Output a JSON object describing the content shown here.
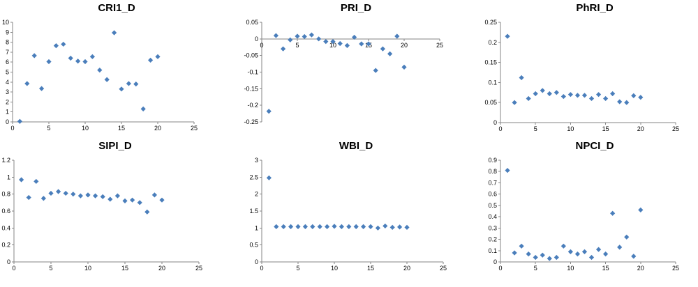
{
  "chart_data": [
    {
      "type": "scatter",
      "title": "CRI1_D",
      "xlim": [
        0,
        25
      ],
      "xticks": [
        0,
        5,
        10,
        15,
        20,
        25
      ],
      "ylim": [
        0,
        10
      ],
      "yticks": [
        0,
        1,
        2,
        3,
        4,
        5,
        6,
        7,
        8,
        9,
        10
      ],
      "series": [
        {
          "name": "CRI1_D",
          "color": "#4a7ebb",
          "x": [
            1,
            2,
            3,
            4,
            5,
            6,
            7,
            8,
            9,
            10,
            11,
            12,
            13,
            14,
            15,
            16,
            17,
            18,
            19,
            20
          ],
          "y": [
            0.05,
            3.85,
            6.65,
            3.35,
            6.05,
            7.65,
            7.8,
            6.4,
            6.1,
            6.05,
            6.55,
            5.2,
            4.25,
            8.95,
            3.3,
            3.85,
            3.8,
            1.3,
            6.2,
            6.55
          ]
        }
      ]
    },
    {
      "type": "scatter",
      "title": "PRI_D",
      "xlim": [
        0,
        25
      ],
      "xticks": [
        0,
        5,
        10,
        15,
        20,
        25
      ],
      "ylim": [
        -0.25,
        0.05
      ],
      "yticks": [
        -0.25,
        -0.2,
        -0.15,
        -0.1,
        -0.05,
        0,
        0.05
      ],
      "ytick_labels": [
        "-0.25",
        "-0.2",
        "-0.15",
        "-0.1",
        "-0.05",
        "0",
        "0.05"
      ],
      "x_axis_at": 0,
      "series": [
        {
          "name": "PRI_D",
          "color": "#4a7ebb",
          "x": [
            1,
            2,
            3,
            4,
            5,
            6,
            7,
            8,
            9,
            10,
            11,
            12,
            13,
            14,
            15,
            16,
            17,
            18,
            19,
            20
          ],
          "y": [
            -0.218,
            0.01,
            -0.03,
            -0.003,
            0.008,
            0.007,
            0.012,
            0.0,
            -0.008,
            -0.008,
            -0.014,
            -0.02,
            0.005,
            -0.015,
            -0.015,
            -0.095,
            -0.03,
            -0.045,
            0.008,
            -0.085
          ]
        }
      ]
    },
    {
      "type": "scatter",
      "title": "PhRI_D",
      "xlim": [
        0,
        25
      ],
      "xticks": [
        0,
        5,
        10,
        15,
        20,
        25
      ],
      "ylim": [
        0,
        0.25
      ],
      "yticks": [
        0,
        0.05,
        0.1,
        0.15,
        0.2,
        0.25
      ],
      "ytick_labels": [
        "0",
        "0.05",
        "0.1",
        "0.15",
        "0.2",
        "0.25"
      ],
      "series": [
        {
          "name": "PhRI_D",
          "color": "#4a7ebb",
          "x": [
            1,
            2,
            3,
            4,
            5,
            6,
            7,
            8,
            9,
            10,
            11,
            12,
            13,
            14,
            15,
            16,
            17,
            18,
            19,
            20
          ],
          "y": [
            0.215,
            0.05,
            0.112,
            0.06,
            0.072,
            0.08,
            0.072,
            0.075,
            0.065,
            0.07,
            0.068,
            0.068,
            0.06,
            0.07,
            0.06,
            0.072,
            0.052,
            0.05,
            0.067,
            0.063
          ]
        }
      ]
    },
    {
      "type": "scatter",
      "title": "SIPI_D",
      "xlim": [
        0,
        25
      ],
      "xticks": [
        0,
        5,
        10,
        15,
        20,
        25
      ],
      "ylim": [
        0,
        1.2
      ],
      "yticks": [
        0,
        0.2,
        0.4,
        0.6,
        0.8,
        1,
        1.2
      ],
      "ytick_labels": [
        "0",
        "0.2",
        "0.4",
        "0.6",
        "0.8",
        "1",
        "1.2"
      ],
      "series": [
        {
          "name": "SIPI_D",
          "color": "#4a7ebb",
          "x": [
            1,
            2,
            3,
            4,
            5,
            6,
            7,
            8,
            9,
            10,
            11,
            12,
            13,
            14,
            15,
            16,
            17,
            18,
            19,
            20
          ],
          "y": [
            0.97,
            0.76,
            0.95,
            0.75,
            0.81,
            0.83,
            0.81,
            0.8,
            0.78,
            0.79,
            0.78,
            0.77,
            0.74,
            0.78,
            0.72,
            0.73,
            0.7,
            0.59,
            0.79,
            0.73
          ]
        }
      ]
    },
    {
      "type": "scatter",
      "title": "WBI_D",
      "xlim": [
        0,
        25
      ],
      "xticks": [
        0,
        5,
        10,
        15,
        20,
        25
      ],
      "ylim": [
        0,
        3
      ],
      "yticks": [
        0,
        0.5,
        1,
        1.5,
        2,
        2.5,
        3
      ],
      "ytick_labels": [
        "0",
        "0.5",
        "1",
        "1.5",
        "2",
        "2.5",
        "3"
      ],
      "series": [
        {
          "name": "WBI_D",
          "color": "#4a7ebb",
          "x": [
            1,
            2,
            3,
            4,
            5,
            6,
            7,
            8,
            9,
            10,
            11,
            12,
            13,
            14,
            15,
            16,
            17,
            18,
            19,
            20
          ],
          "y": [
            2.48,
            1.04,
            1.04,
            1.04,
            1.04,
            1.04,
            1.04,
            1.04,
            1.04,
            1.05,
            1.04,
            1.04,
            1.04,
            1.04,
            1.04,
            1.0,
            1.06,
            1.02,
            1.03,
            1.02
          ]
        }
      ]
    },
    {
      "type": "scatter",
      "title": "NPCI_D",
      "xlim": [
        0,
        25
      ],
      "xticks": [
        0,
        5,
        10,
        15,
        20,
        25
      ],
      "ylim": [
        0,
        0.9
      ],
      "yticks": [
        0,
        0.1,
        0.2,
        0.3,
        0.4,
        0.5,
        0.6,
        0.7,
        0.8,
        0.9
      ],
      "ytick_labels": [
        "0",
        "0.1",
        "0.2",
        "0.3",
        "0.4",
        "0.5",
        "0.6",
        "0.7",
        "0.8",
        "0.9"
      ],
      "series": [
        {
          "name": "NPCI_D",
          "color": "#4a7ebb",
          "x": [
            1,
            2,
            3,
            4,
            5,
            6,
            7,
            8,
            9,
            10,
            11,
            12,
            13,
            14,
            15,
            16,
            17,
            18,
            19,
            20
          ],
          "y": [
            0.81,
            0.08,
            0.14,
            0.07,
            0.04,
            0.06,
            0.03,
            0.04,
            0.14,
            0.09,
            0.07,
            0.09,
            0.04,
            0.11,
            0.07,
            0.43,
            0.13,
            0.22,
            0.05,
            0.46
          ]
        }
      ]
    }
  ]
}
